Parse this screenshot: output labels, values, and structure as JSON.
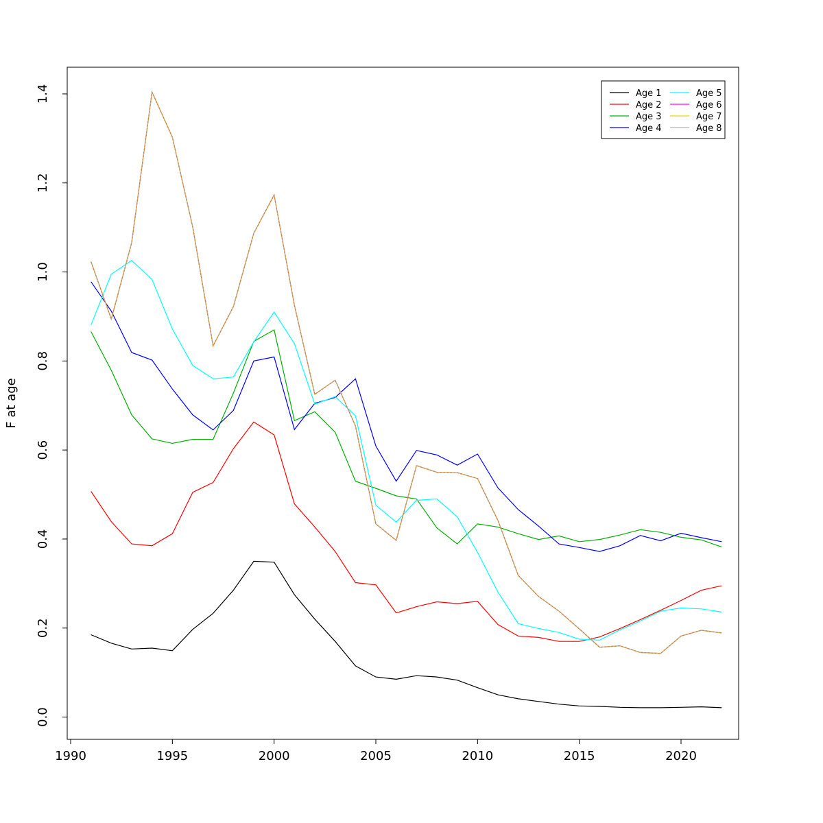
{
  "chart_data": {
    "type": "line",
    "title": "",
    "xlabel": "",
    "ylabel": "F at age",
    "xlim": [
      1990,
      2023
    ],
    "ylim": [
      -0.05,
      1.46
    ],
    "xticks": [
      1990,
      1995,
      2000,
      2005,
      2010,
      2015,
      2020
    ],
    "yticks": [
      0.0,
      0.2,
      0.4,
      0.6,
      0.8,
      1.0,
      1.2,
      1.4
    ],
    "ytick_labels": [
      "0.0",
      "0.2",
      "0.4",
      "0.6",
      "0.8",
      "1.0",
      "1.2",
      "1.4"
    ],
    "grid": false,
    "legend_position": "top-right",
    "x": [
      1991,
      1992,
      1993,
      1994,
      1995,
      1996,
      1997,
      1998,
      1999,
      2000,
      2001,
      2002,
      2003,
      2004,
      2005,
      2006,
      2007,
      2008,
      2009,
      2010,
      2011,
      2012,
      2013,
      2014,
      2015,
      2016,
      2017,
      2018,
      2019,
      2020,
      2021,
      2022
    ],
    "series": [
      {
        "name": "Age 1",
        "color": "#000000",
        "values": [
          0.185,
          0.166,
          0.153,
          0.155,
          0.149,
          0.197,
          0.233,
          0.285,
          0.35,
          0.348,
          0.275,
          0.22,
          0.17,
          0.115,
          0.09,
          0.085,
          0.093,
          0.09,
          0.083,
          0.066,
          0.05,
          0.041,
          0.035,
          0.029,
          0.025,
          0.024,
          0.022,
          0.021,
          0.021,
          0.022,
          0.023,
          0.021
        ]
      },
      {
        "name": "Age 2",
        "color": "#ff0000",
        "values": [
          0.507,
          0.439,
          0.389,
          0.385,
          0.412,
          0.505,
          0.527,
          0.603,
          0.663,
          0.634,
          0.479,
          0.427,
          0.372,
          0.302,
          0.297,
          0.234,
          0.248,
          0.259,
          0.255,
          0.26,
          0.208,
          0.182,
          0.179,
          0.17,
          0.17,
          0.18,
          0.199,
          0.219,
          0.24,
          0.262,
          0.285,
          0.295
        ]
      },
      {
        "name": "Age 3",
        "color": "#00b000",
        "values": [
          0.866,
          0.779,
          0.679,
          0.625,
          0.615,
          0.624,
          0.624,
          0.728,
          0.844,
          0.87,
          0.666,
          0.686,
          0.64,
          0.53,
          0.514,
          0.497,
          0.49,
          0.425,
          0.389,
          0.434,
          0.427,
          0.412,
          0.399,
          0.407,
          0.394,
          0.399,
          0.409,
          0.421,
          0.415,
          0.404,
          0.398,
          0.382
        ]
      },
      {
        "name": "Age 4",
        "color": "#0000ff",
        "values": [
          0.978,
          0.912,
          0.819,
          0.802,
          0.737,
          0.679,
          0.645,
          0.689,
          0.8,
          0.809,
          0.646,
          0.705,
          0.718,
          0.76,
          0.609,
          0.53,
          0.599,
          0.589,
          0.566,
          0.591,
          0.515,
          0.466,
          0.429,
          0.389,
          0.381,
          0.372,
          0.385,
          0.408,
          0.396,
          0.413,
          0.403,
          0.394
        ]
      },
      {
        "name": "Age 5",
        "color": "#00ffff",
        "values": [
          0.881,
          0.995,
          1.026,
          0.983,
          0.872,
          0.79,
          0.76,
          0.764,
          0.843,
          0.91,
          0.839,
          0.703,
          0.72,
          0.677,
          0.476,
          0.438,
          0.487,
          0.49,
          0.45,
          0.37,
          0.281,
          0.21,
          0.199,
          0.19,
          0.175,
          0.173,
          0.196,
          0.216,
          0.238,
          0.245,
          0.243,
          0.236
        ]
      },
      {
        "name": "Age 6",
        "color": "#ff00ff",
        "values": [
          1.023,
          0.894,
          1.066,
          1.404,
          1.303,
          1.101,
          0.834,
          0.922,
          1.087,
          1.173,
          0.925,
          0.725,
          0.757,
          0.654,
          0.434,
          0.397,
          0.565,
          0.55,
          0.549,
          0.536,
          0.442,
          0.318,
          0.271,
          0.238,
          0.198,
          0.157,
          0.16,
          0.145,
          0.143,
          0.182,
          0.195,
          0.189
        ]
      },
      {
        "name": "Age 7",
        "color": "#e6d800",
        "values": [
          1.023,
          0.894,
          1.066,
          1.404,
          1.303,
          1.101,
          0.834,
          0.922,
          1.087,
          1.173,
          0.925,
          0.725,
          0.757,
          0.654,
          0.434,
          0.397,
          0.565,
          0.55,
          0.549,
          0.536,
          0.442,
          0.318,
          0.271,
          0.238,
          0.198,
          0.157,
          0.16,
          0.145,
          0.143,
          0.182,
          0.195,
          0.189
        ]
      },
      {
        "name": "Age 8",
        "color": "#b4b4b4",
        "values": [
          1.023,
          0.894,
          1.066,
          1.404,
          1.303,
          1.101,
          0.834,
          0.922,
          1.087,
          1.173,
          0.925,
          0.725,
          0.757,
          0.654,
          0.434,
          0.397,
          0.565,
          0.55,
          0.549,
          0.536,
          0.442,
          0.318,
          0.271,
          0.238,
          0.198,
          0.157,
          0.16,
          0.145,
          0.143,
          0.182,
          0.195,
          0.189
        ]
      }
    ],
    "overlay_color": "#d2882a"
  }
}
